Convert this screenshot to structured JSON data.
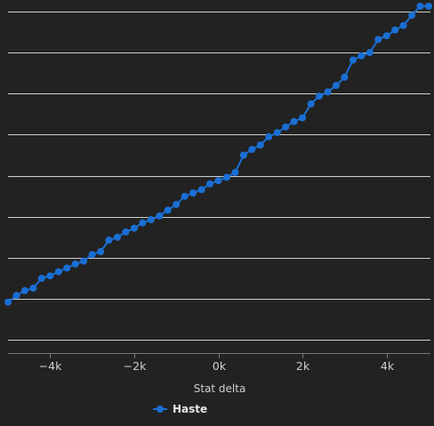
{
  "chart_data": {
    "type": "line",
    "xlabel": "Stat delta",
    "ylabel": "",
    "xlim": [
      -5000,
      5000
    ],
    "ylim": [
      0,
      8.3
    ],
    "x_ticks": [
      -4000,
      -2000,
      0,
      2000,
      4000
    ],
    "x_tick_labels": [
      "−4k",
      "−2k",
      "0k",
      "2k",
      "4k"
    ],
    "y_gridlines": [
      0.3,
      1.3,
      2.3,
      3.3,
      4.3,
      5.3,
      6.3,
      7.3,
      8.3
    ],
    "grid": true,
    "legend_position": "bottom-left",
    "series": [
      {
        "name": "Haste",
        "color": "#1a6fd4",
        "marker": "circle",
        "points": [
          [
            -5000,
            1.22
          ],
          [
            -4800,
            1.38
          ],
          [
            -4600,
            1.5
          ],
          [
            -4400,
            1.56
          ],
          [
            -4200,
            1.8
          ],
          [
            -4000,
            1.86
          ],
          [
            -3800,
            1.96
          ],
          [
            -3600,
            2.05
          ],
          [
            -3400,
            2.15
          ],
          [
            -3200,
            2.22
          ],
          [
            -3000,
            2.38
          ],
          [
            -2800,
            2.45
          ],
          [
            -2600,
            2.73
          ],
          [
            -2400,
            2.8
          ],
          [
            -2200,
            2.93
          ],
          [
            -2000,
            3.02
          ],
          [
            -1800,
            3.15
          ],
          [
            -1600,
            3.23
          ],
          [
            -1400,
            3.32
          ],
          [
            -1200,
            3.46
          ],
          [
            -1000,
            3.6
          ],
          [
            -800,
            3.8
          ],
          [
            -600,
            3.88
          ],
          [
            -400,
            3.96
          ],
          [
            -200,
            4.1
          ],
          [
            0,
            4.18
          ],
          [
            200,
            4.26
          ],
          [
            400,
            4.38
          ],
          [
            600,
            4.8
          ],
          [
            800,
            4.94
          ],
          [
            1000,
            5.05
          ],
          [
            1200,
            5.25
          ],
          [
            1400,
            5.35
          ],
          [
            1600,
            5.49
          ],
          [
            1800,
            5.62
          ],
          [
            2000,
            5.71
          ],
          [
            2200,
            6.05
          ],
          [
            2400,
            6.24
          ],
          [
            2600,
            6.34
          ],
          [
            2800,
            6.5
          ],
          [
            3000,
            6.7
          ],
          [
            3200,
            7.12
          ],
          [
            3400,
            7.22
          ],
          [
            3600,
            7.3
          ],
          [
            3800,
            7.62
          ],
          [
            4000,
            7.71
          ],
          [
            4200,
            7.85
          ],
          [
            4400,
            7.96
          ],
          [
            4600,
            8.21
          ],
          [
            4800,
            8.43
          ],
          [
            5000,
            8.43
          ]
        ]
      }
    ]
  }
}
